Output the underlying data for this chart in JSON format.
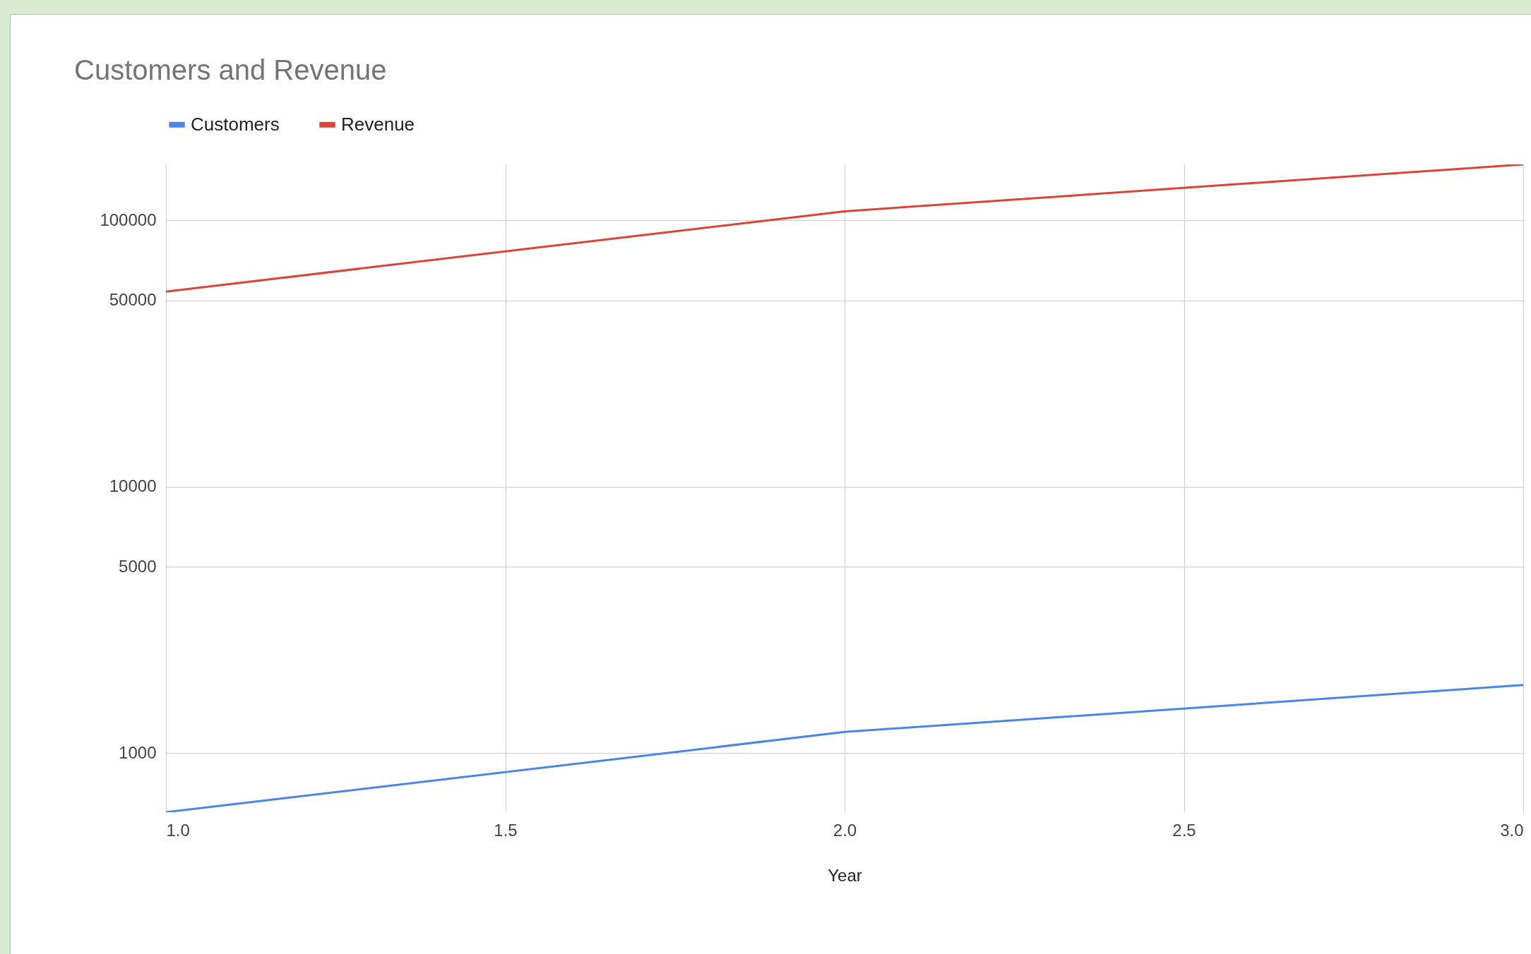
{
  "chart_data": {
    "type": "line",
    "title": "Customers and Revenue",
    "xlabel": "Year",
    "x": [
      1,
      2,
      3
    ],
    "series": [
      {
        "name": "Customers",
        "color": "#4a86e8",
        "values": [
          600,
          1200,
          1800
        ]
      },
      {
        "name": "Revenue",
        "color": "#db4437",
        "values": [
          54000,
          108000,
          162000
        ]
      }
    ],
    "xlim": [
      1,
      3
    ],
    "xticks": [
      {
        "value": 1,
        "label": "1.0"
      },
      {
        "value": 1.5,
        "label": "1.5"
      },
      {
        "value": 2,
        "label": "2.0"
      },
      {
        "value": 2.5,
        "label": "2.5"
      },
      {
        "value": 3,
        "label": "3.0"
      }
    ],
    "ylim": [
      600,
      162000
    ],
    "yticks": [
      1000,
      5000,
      10000,
      50000,
      100000
    ],
    "log": true,
    "grid": true,
    "legend": "top",
    "line_style": "solid"
  }
}
